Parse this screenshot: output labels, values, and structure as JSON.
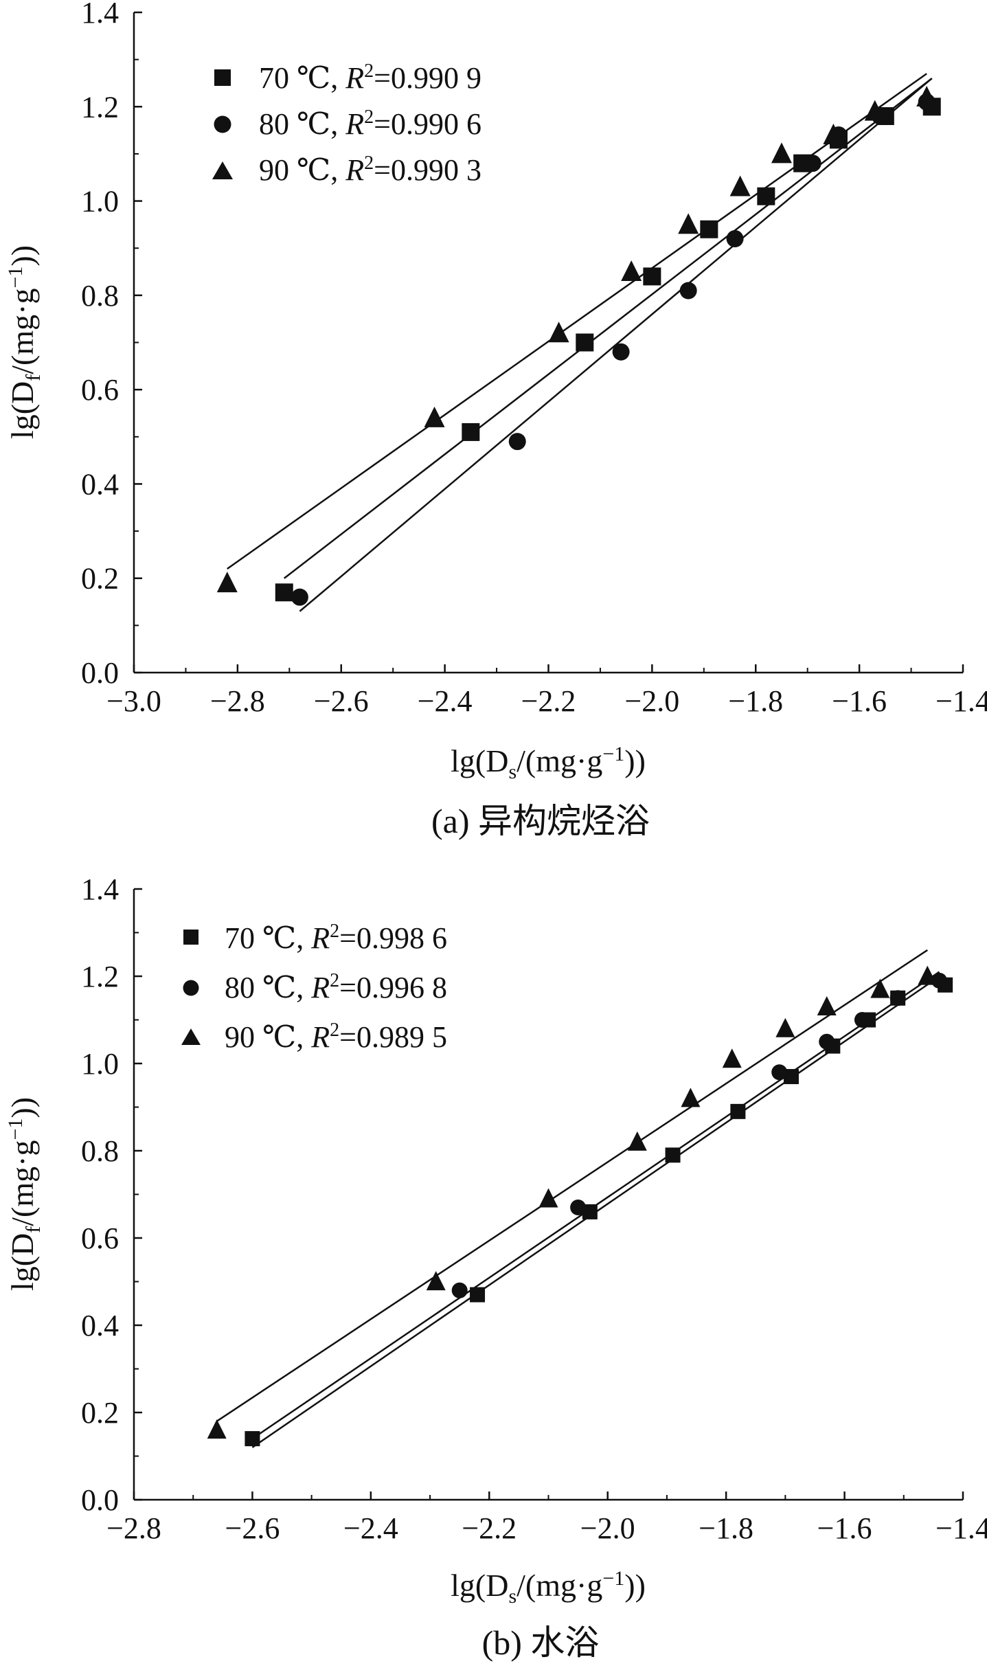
{
  "figure": {
    "panels": [
      {
        "caption": "(a) 异构烷烃浴",
        "xlabel": {
          "main": "lg(D",
          "sub": "s",
          "rest": "/(mg·g",
          "sup": "−1",
          "close": "))"
        },
        "ylabel": {
          "main": "lg(D",
          "sub": "f",
          "rest": "/(mg·g",
          "sup": "−1",
          "close": "))"
        },
        "xticks": [
          "−3.0",
          "−2.8",
          "−2.6",
          "−2.4",
          "−2.2",
          "−2.0",
          "−1.8",
          "−1.6",
          "−1.4"
        ],
        "yticks": [
          "0.0",
          "0.2",
          "0.4",
          "0.6",
          "0.8",
          "1.0",
          "1.2",
          "1.4"
        ],
        "legend": [
          {
            "temp": "70 ℃, ",
            "r2_label": "R",
            "r2_sup": "2",
            "r2_value": "=0.990 9"
          },
          {
            "temp": "80 ℃, ",
            "r2_label": "R",
            "r2_sup": "2",
            "r2_value": "=0.990 6"
          },
          {
            "temp": "90 ℃, ",
            "r2_label": "R",
            "r2_sup": "2",
            "r2_value": "=0.990 3"
          }
        ]
      },
      {
        "caption": "(b) 水浴",
        "xlabel": {
          "main": "lg(D",
          "sub": "s",
          "rest": "/(mg·g",
          "sup": "−1",
          "close": "))"
        },
        "ylabel": {
          "main": "lg(D",
          "sub": "f",
          "rest": "/(mg·g",
          "sup": "−1",
          "close": "))"
        },
        "xticks": [
          "−2.8",
          "−2.6",
          "−2.4",
          "−2.2",
          "−2.0",
          "−1.8",
          "−1.6",
          "−1.4"
        ],
        "yticks": [
          "0.0",
          "0.2",
          "0.4",
          "0.6",
          "0.8",
          "1.0",
          "1.2",
          "1.4"
        ],
        "legend": [
          {
            "temp": "70 ℃, ",
            "r2_label": "R",
            "r2_sup": "2",
            "r2_value": "=0.998 6"
          },
          {
            "temp": "80 ℃, ",
            "r2_label": "R",
            "r2_sup": "2",
            "r2_value": "=0.996 8"
          },
          {
            "temp": "90 ℃, ",
            "r2_label": "R",
            "r2_sup": "2",
            "r2_value": "=0.989 5"
          }
        ]
      }
    ]
  },
  "chart_data": [
    {
      "type": "scatter",
      "caption": "(a) 异构烷烃浴",
      "xlabel": "lg(Ds/(mg·g−1))",
      "ylabel": "lg(Df/(mg·g−1))",
      "xlim": [
        -3.0,
        -1.4
      ],
      "ylim": [
        0.0,
        1.4
      ],
      "x_ticks": [
        -3.0,
        -2.8,
        -2.6,
        -2.4,
        -2.2,
        -2.0,
        -1.8,
        -1.6,
        -1.4
      ],
      "y_ticks": [
        0.0,
        0.2,
        0.4,
        0.6,
        0.8,
        1.0,
        1.2,
        1.4
      ],
      "legend_position": "top-left",
      "grid": false,
      "series": [
        {
          "name": "70 ℃, R²=0.990 9",
          "marker": "square",
          "points": [
            [
              -2.71,
              0.17
            ],
            [
              -2.35,
              0.51
            ],
            [
              -2.13,
              0.7
            ],
            [
              -2.0,
              0.84
            ],
            [
              -1.89,
              0.94
            ],
            [
              -1.78,
              1.01
            ],
            [
              -1.71,
              1.08
            ],
            [
              -1.64,
              1.13
            ],
            [
              -1.55,
              1.18
            ],
            [
              -1.46,
              1.2
            ]
          ],
          "fit_line": [
            [
              -2.71,
              0.2
            ],
            [
              -1.46,
              1.26
            ]
          ]
        },
        {
          "name": "80 ℃, R²=0.990 6",
          "marker": "circle",
          "points": [
            [
              -2.68,
              0.16
            ],
            [
              -2.26,
              0.49
            ],
            [
              -2.06,
              0.68
            ],
            [
              -1.93,
              0.81
            ],
            [
              -1.84,
              0.92
            ],
            [
              -1.69,
              1.08
            ],
            [
              -1.64,
              1.14
            ],
            [
              -1.56,
              1.18
            ],
            [
              -1.47,
              1.21
            ]
          ],
          "fit_line": [
            [
              -2.68,
              0.13
            ],
            [
              -1.46,
              1.26
            ]
          ]
        },
        {
          "name": "90 ℃, R²=0.990 3",
          "marker": "triangle",
          "points": [
            [
              -2.82,
              0.19
            ],
            [
              -2.42,
              0.54
            ],
            [
              -2.18,
              0.72
            ],
            [
              -2.04,
              0.85
            ],
            [
              -1.93,
              0.95
            ],
            [
              -1.83,
              1.03
            ],
            [
              -1.75,
              1.1
            ],
            [
              -1.65,
              1.14
            ],
            [
              -1.57,
              1.19
            ],
            [
              -1.47,
              1.22
            ]
          ],
          "fit_line": [
            [
              -2.82,
              0.22
            ],
            [
              -1.47,
              1.27
            ]
          ]
        }
      ]
    },
    {
      "type": "scatter",
      "caption": "(b) 水浴",
      "xlabel": "lg(Ds/(mg·g−1))",
      "ylabel": "lg(Df/(mg·g−1))",
      "xlim": [
        -2.8,
        -1.4
      ],
      "ylim": [
        0.0,
        1.4
      ],
      "x_ticks": [
        -2.8,
        -2.6,
        -2.4,
        -2.2,
        -2.0,
        -1.8,
        -1.6,
        -1.4
      ],
      "y_ticks": [
        0.0,
        0.2,
        0.4,
        0.6,
        0.8,
        1.0,
        1.2,
        1.4
      ],
      "legend_position": "top-left",
      "grid": false,
      "series": [
        {
          "name": "70 ℃, R²=0.998 6",
          "marker": "square",
          "points": [
            [
              -2.6,
              0.14
            ],
            [
              -2.22,
              0.47
            ],
            [
              -2.03,
              0.66
            ],
            [
              -1.89,
              0.79
            ],
            [
              -1.78,
              0.89
            ],
            [
              -1.69,
              0.97
            ],
            [
              -1.62,
              1.04
            ],
            [
              -1.56,
              1.1
            ],
            [
              -1.51,
              1.15
            ],
            [
              -1.43,
              1.18
            ]
          ],
          "fit_line": [
            [
              -2.6,
              0.12
            ],
            [
              -1.45,
              1.19
            ]
          ]
        },
        {
          "name": "80 ℃, R²=0.996 8",
          "marker": "circle",
          "points": [
            [
              -2.25,
              0.48
            ],
            [
              -2.05,
              0.67
            ],
            [
              -1.71,
              0.98
            ],
            [
              -1.63,
              1.05
            ],
            [
              -1.57,
              1.1
            ],
            [
              -1.51,
              1.15
            ],
            [
              -1.44,
              1.19
            ]
          ],
          "fit_line": [
            [
              -2.6,
              0.14
            ],
            [
              -1.44,
              1.21
            ]
          ]
        },
        {
          "name": "90 ℃, R²=0.989 5",
          "marker": "triangle",
          "points": [
            [
              -2.66,
              0.16
            ],
            [
              -2.29,
              0.5
            ],
            [
              -2.1,
              0.69
            ],
            [
              -1.95,
              0.82
            ],
            [
              -1.86,
              0.92
            ],
            [
              -1.79,
              1.01
            ],
            [
              -1.7,
              1.08
            ],
            [
              -1.63,
              1.13
            ],
            [
              -1.54,
              1.17
            ],
            [
              -1.46,
              1.2
            ]
          ],
          "fit_line": [
            [
              -2.66,
              0.18
            ],
            [
              -1.46,
              1.26
            ]
          ]
        }
      ]
    }
  ]
}
